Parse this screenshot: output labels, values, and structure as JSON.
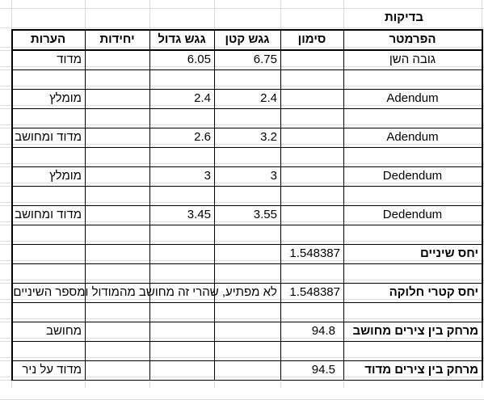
{
  "header": {
    "title": "בדיקות"
  },
  "table": {
    "columns": [
      "הפרמטר",
      "סימון",
      "גגש קטן",
      "גגש גדול",
      "יחידות",
      "הערות"
    ],
    "rows": [
      [
        "גובה השן",
        null,
        6.75,
        6.05,
        null,
        "מדוד"
      ],
      [
        null,
        null,
        null,
        null,
        null,
        null
      ],
      [
        "Adendum",
        null,
        2.4,
        2.4,
        null,
        "מומלץ"
      ],
      [
        null,
        null,
        null,
        null,
        null,
        null
      ],
      [
        "Adendum",
        null,
        3.2,
        2.6,
        null,
        "מדוד ומחושב"
      ],
      [
        null,
        null,
        null,
        null,
        null,
        null
      ],
      [
        "Dedendum",
        null,
        3,
        3,
        null,
        "מומלץ"
      ],
      [
        null,
        null,
        null,
        null,
        null,
        null
      ],
      [
        "Dedendum",
        null,
        3.55,
        3.45,
        null,
        "מדוד ומחושב"
      ],
      [
        null,
        null,
        null,
        null,
        null,
        null
      ],
      [
        "יחס שיניים",
        1.548387,
        null,
        null,
        null,
        null
      ],
      [
        null,
        null,
        null,
        null,
        null,
        null
      ],
      [
        "יחס קטרי חלוקה",
        1.548387,
        "לא מפתיע, שהרי זה מחושב מהמודול ומספר השיניים",
        null,
        null,
        null
      ],
      [
        null,
        null,
        null,
        null,
        null,
        null
      ],
      [
        "מרחק בין צירים מחושב",
        94.8,
        null,
        null,
        null,
        "מחושב"
      ],
      [
        null,
        null,
        null,
        null,
        null,
        null
      ],
      [
        "מרחק בין צירים מדוד",
        94.5,
        null,
        null,
        null,
        "מדוד על ניר"
      ]
    ]
  }
}
